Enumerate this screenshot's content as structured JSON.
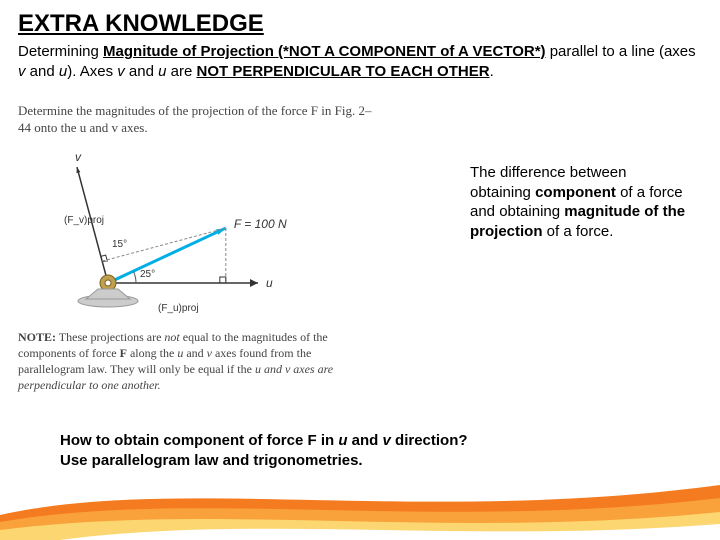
{
  "title": "EXTRA KNOWLEDGE",
  "subtitle_parts": {
    "p1": "Determining ",
    "p2": "Magnitude of Projection (*NOT A COMPONENT of A VECTOR*)",
    "p3": " parallel to a line (axes ",
    "p4": "v",
    "p5": " and ",
    "p6": "u",
    "p7": "). Axes ",
    "p8": "v",
    "p9": " and ",
    "p10": "u",
    "p11": " are ",
    "p12": "NOT PERPENDICULAR TO EACH OTHER",
    "p13": "."
  },
  "fig_prompt": "Determine the magnitudes of the projection of the force F in Fig. 2–44 onto the u and v axes.",
  "fig_note": {
    "n0": "NOTE:",
    "n1": " These projections are ",
    "n2": "not",
    "n3": " equal to the magnitudes of the components of force ",
    "n4": "F",
    "n5": " along the ",
    "n6": "u",
    "n7": " and ",
    "n8": "v",
    "n9": " axes found from the parallelogram law. They will only be equal if the ",
    "n10": "u and v axes are perpendicular to one another."
  },
  "side": {
    "s1": "The difference between obtaining ",
    "s2": "component",
    "s3": " of a force and obtaining ",
    "s4": "magnitude of the projection",
    "s5": " of a force."
  },
  "bottom": {
    "b1": "How to obtain component of force F in ",
    "b2": "u",
    "b3": " and ",
    "b4": "v",
    "b5": " direction?",
    "b6": "Use parallelogram law and trigonometries."
  },
  "diagram": {
    "force_label": "F = 100 N",
    "angle1": "15°",
    "angle2": "25°",
    "u_label": "u",
    "v_label": "v",
    "fv_label": "(F_v)proj",
    "fu_label": "(F_u)proj",
    "colors": {
      "axis": "#333333",
      "force": "#00aee6",
      "proj_line": "#888888",
      "perp_mark": "#333333",
      "base": "#999999",
      "base_fill": "#cccccc",
      "pin_fill": "#bfa050",
      "pin_stroke": "#7a6020"
    }
  },
  "swoosh_colors": {
    "c1": "#f47b20",
    "c2": "#f9a13a",
    "c3": "#fcd670",
    "c4": "#ffffff"
  }
}
